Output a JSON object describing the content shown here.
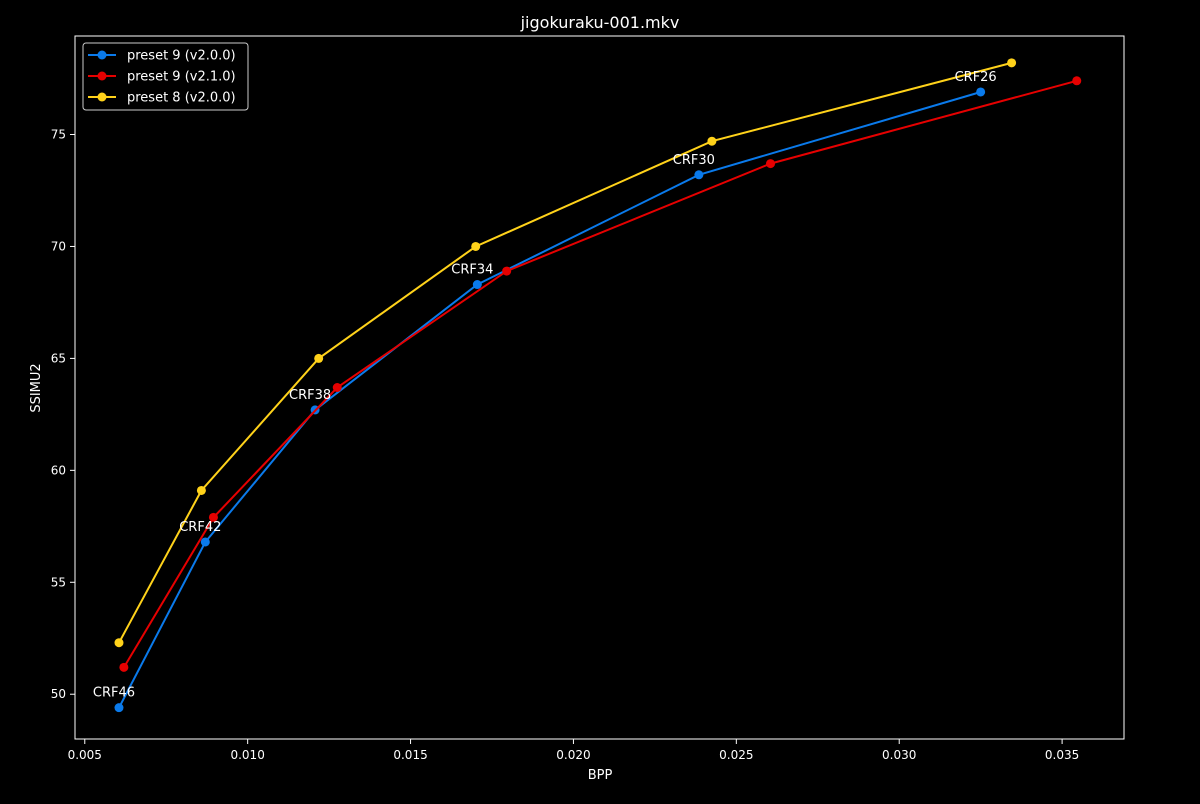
{
  "chart_data": {
    "type": "line",
    "title": "jigokuraku-001.mkv",
    "xlabel": "BPP",
    "ylabel": "SSIMU2",
    "xlim": [
      0.0047,
      0.0369
    ],
    "ylim": [
      48.0,
      79.4
    ],
    "xticks": [
      0.005,
      0.01,
      0.015,
      0.02,
      0.025,
      0.03,
      0.035
    ],
    "xtick_labels": [
      "0.005",
      "0.010",
      "0.015",
      "0.020",
      "0.025",
      "0.030",
      "0.035"
    ],
    "yticks": [
      50,
      55,
      60,
      65,
      70,
      75
    ],
    "ytick_labels": [
      "50",
      "55",
      "60",
      "65",
      "70",
      "75"
    ],
    "grid": false,
    "legend_position": "top-left",
    "series": [
      {
        "name": "preset 9 (v2.0.0)",
        "color": "#0a7aeb",
        "x": [
          0.00605,
          0.0087,
          0.01207,
          0.01705,
          0.02385,
          0.0325
        ],
        "y": [
          49.4,
          56.8,
          62.7,
          68.3,
          73.2,
          76.9
        ]
      },
      {
        "name": "preset 9 (v2.1.0)",
        "color": "#e60000",
        "x": [
          0.0062,
          0.00895,
          0.01275,
          0.01795,
          0.02605,
          0.03545
        ],
        "y": [
          51.2,
          57.9,
          63.7,
          68.9,
          73.7,
          77.4
        ]
      },
      {
        "name": "preset 8 (v2.0.0)",
        "color": "#ffd21a",
        "x": [
          0.00605,
          0.00858,
          0.01218,
          0.017,
          0.02425,
          0.03345
        ],
        "y": [
          52.3,
          59.1,
          65.0,
          70.0,
          74.7,
          78.2
        ]
      }
    ],
    "annotations": [
      {
        "text": "CRF46",
        "x": 0.00605,
        "y": 49.4
      },
      {
        "text": "CRF42",
        "x": 0.0087,
        "y": 56.8
      },
      {
        "text": "CRF38",
        "x": 0.01207,
        "y": 62.7
      },
      {
        "text": "CRF34",
        "x": 0.01705,
        "y": 68.3
      },
      {
        "text": "CRF30",
        "x": 0.02385,
        "y": 73.2
      },
      {
        "text": "CRF26",
        "x": 0.0325,
        "y": 76.9
      }
    ]
  }
}
